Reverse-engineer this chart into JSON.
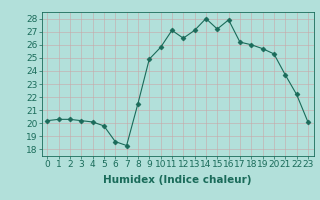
{
  "x": [
    0,
    1,
    2,
    3,
    4,
    5,
    6,
    7,
    8,
    9,
    10,
    11,
    12,
    13,
    14,
    15,
    16,
    17,
    18,
    19,
    20,
    21,
    22,
    23
  ],
  "y": [
    20.2,
    20.3,
    20.3,
    20.2,
    20.1,
    19.8,
    18.6,
    18.3,
    21.5,
    24.9,
    25.8,
    27.1,
    26.5,
    27.1,
    28.0,
    27.2,
    27.9,
    26.2,
    26.0,
    25.7,
    25.3,
    23.7,
    22.2,
    20.1
  ],
  "line_color": "#1a6b5a",
  "marker": "D",
  "marker_size": 2.5,
  "bg_color": "#b2e0da",
  "grid_color": "#d0eeea",
  "xlabel": "Humidex (Indice chaleur)",
  "xlim": [
    -0.5,
    23.5
  ],
  "ylim": [
    17.5,
    28.5
  ],
  "yticks": [
    18,
    19,
    20,
    21,
    22,
    23,
    24,
    25,
    26,
    27,
    28
  ],
  "xticks": [
    0,
    1,
    2,
    3,
    4,
    5,
    6,
    7,
    8,
    9,
    10,
    11,
    12,
    13,
    14,
    15,
    16,
    17,
    18,
    19,
    20,
    21,
    22,
    23
  ],
  "xtick_labels": [
    "0",
    "1",
    "2",
    "3",
    "4",
    "5",
    "6",
    "7",
    "8",
    "9",
    "10",
    "11",
    "12",
    "13",
    "14",
    "15",
    "16",
    "17",
    "18",
    "19",
    "20",
    "21",
    "22",
    "23"
  ],
  "tick_color": "#1a6b5a",
  "label_color": "#1a6b5a",
  "font_size": 6.5,
  "xlabel_fontsize": 7.5
}
